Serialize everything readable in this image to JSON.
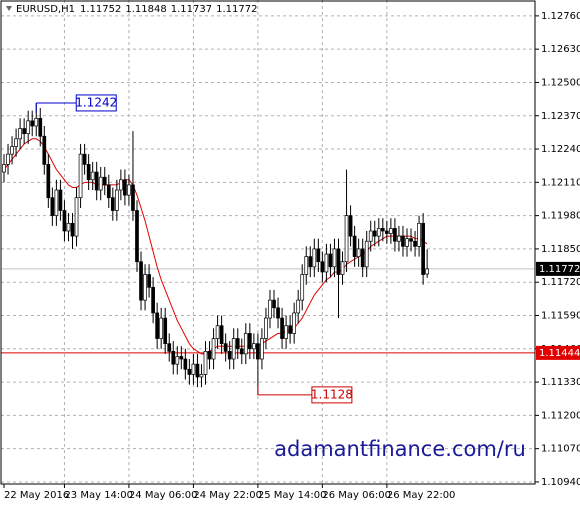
{
  "chart_data": {
    "type": "candlestick",
    "symbol": "EURUSD,H1",
    "categories": [
      "22 May 2016",
      null,
      null,
      null,
      null,
      null,
      null,
      null,
      null,
      null,
      null,
      null,
      null,
      null,
      null,
      "23 May 14:00",
      null,
      null,
      null,
      null,
      null,
      null,
      null,
      null,
      null,
      null,
      null,
      null,
      null,
      null,
      null,
      "24 May 06:00",
      null,
      null,
      null,
      null,
      null,
      null,
      null,
      null,
      null,
      null,
      null,
      null,
      null,
      null,
      null,
      "24 May 22:00",
      null,
      null,
      null,
      null,
      null,
      null,
      null,
      null,
      null,
      null,
      null,
      null,
      null,
      null,
      null,
      "25 May 14:00",
      null,
      null,
      null,
      null,
      null,
      null,
      null,
      null,
      null,
      null,
      null,
      null,
      null,
      null,
      null,
      "26 May 06:00",
      null,
      null,
      null,
      null,
      null,
      null,
      null,
      null,
      null,
      null,
      null,
      null,
      null,
      null,
      null,
      "26 May 22:00",
      null,
      null,
      null,
      null,
      null,
      null,
      null,
      null,
      null,
      null
    ],
    "open": [
      1.1215,
      1.1218,
      1.1222,
      1.1225,
      1.1228,
      1.1232,
      1.123,
      1.1235,
      1.1233,
      1.1236,
      1.1229,
      1.1218,
      1.1205,
      1.1198,
      1.1208,
      1.12,
      1.1192,
      1.1195,
      1.119,
      1.1205,
      1.1222,
      1.1218,
      1.1212,
      1.1215,
      1.1208,
      1.1213,
      1.121,
      1.1205,
      1.12,
      1.1208,
      1.1212,
      1.1206,
      1.121,
      1.12,
      1.118,
      1.1165,
      1.1175,
      1.117,
      1.116,
      1.115,
      1.1158,
      1.1148,
      1.1145,
      1.114,
      1.1143,
      1.1142,
      1.1138,
      1.1136,
      1.114,
      1.1135,
      1.1136,
      1.1145,
      1.1142,
      1.115,
      1.1155,
      1.1148,
      1.1145,
      1.1142,
      1.115,
      1.1146,
      1.1144,
      1.1152,
      1.1146,
      1.1148,
      1.1142,
      1.115,
      1.1158,
      1.1165,
      1.1162,
      1.1158,
      1.115,
      1.1155,
      1.1152,
      1.116,
      1.1165,
      1.1175,
      1.1182,
      1.1178,
      1.1185,
      1.118,
      1.1176,
      1.1183,
      1.1178,
      1.1185,
      1.1175,
      1.118,
      1.1198,
      1.119,
      1.1182,
      1.1185,
      1.1178,
      1.1188,
      1.1192,
      1.119,
      1.1193,
      1.1192,
      1.1191,
      1.1193,
      1.1188,
      1.119,
      1.1186,
      1.1189,
      1.1188,
      1.1186,
      1.1195,
      1.11752
    ],
    "high": [
      1.1222,
      1.1226,
      1.1229,
      1.1232,
      1.1236,
      1.1236,
      1.1239,
      1.1239,
      1.1242,
      1.124,
      1.1233,
      1.1222,
      1.1209,
      1.1212,
      1.1212,
      1.1204,
      1.1199,
      1.1199,
      1.1209,
      1.1226,
      1.1226,
      1.1222,
      1.1219,
      1.1219,
      1.1217,
      1.1217,
      1.1214,
      1.1209,
      1.1212,
      1.1216,
      1.1216,
      1.1214,
      1.1231,
      1.1204,
      1.1184,
      1.1179,
      1.1179,
      1.1174,
      1.1164,
      1.1162,
      1.1162,
      1.1152,
      1.1149,
      1.1147,
      1.1147,
      1.1146,
      1.1142,
      1.1144,
      1.1144,
      1.114,
      1.1149,
      1.1149,
      1.1154,
      1.1159,
      1.1159,
      1.1152,
      1.1149,
      1.1154,
      1.1154,
      1.115,
      1.1156,
      1.1156,
      1.1152,
      1.1152,
      1.1154,
      1.1162,
      1.1169,
      1.1169,
      1.1166,
      1.1162,
      1.1159,
      1.1159,
      1.1164,
      1.1169,
      1.1179,
      1.1186,
      1.1186,
      1.1189,
      1.1189,
      1.1184,
      1.1187,
      1.1187,
      1.1189,
      1.1189,
      1.1184,
      1.1216,
      1.1202,
      1.1194,
      1.1189,
      1.1189,
      1.1192,
      1.1196,
      1.1196,
      1.1197,
      1.1197,
      1.1196,
      1.1197,
      1.1197,
      1.1194,
      1.1194,
      1.1193,
      1.1193,
      1.1192,
      1.1198,
      1.1199,
      1.11848
    ],
    "low": [
      1.1211,
      1.1214,
      1.1218,
      1.1221,
      1.1224,
      1.1226,
      1.1226,
      1.1229,
      1.1229,
      1.1225,
      1.1214,
      1.1201,
      1.1194,
      1.1194,
      1.1196,
      1.1188,
      1.1188,
      1.1185,
      1.1186,
      1.1201,
      1.1214,
      1.1208,
      1.1208,
      1.1204,
      1.1204,
      1.1206,
      1.1201,
      1.1196,
      1.1196,
      1.1204,
      1.1202,
      1.1202,
      1.1196,
      1.1176,
      1.1161,
      1.1161,
      1.1166,
      1.1156,
      1.1146,
      1.1146,
      1.1144,
      1.1141,
      1.1136,
      1.1136,
      1.1138,
      1.1134,
      1.1132,
      1.1132,
      1.1131,
      1.1131,
      1.1132,
      1.1138,
      1.1138,
      1.1146,
      1.1144,
      1.1141,
      1.1138,
      1.1138,
      1.1142,
      1.114,
      1.114,
      1.1142,
      1.1142,
      1.1128,
      1.1138,
      1.1146,
      1.1154,
      1.1158,
      1.1154,
      1.1146,
      1.1146,
      1.1148,
      1.1148,
      1.1156,
      1.1161,
      1.1171,
      1.1174,
      1.1174,
      1.1176,
      1.1172,
      1.1172,
      1.1174,
      1.1174,
      1.1158,
      1.1171,
      1.1176,
      1.1186,
      1.1178,
      1.1178,
      1.1174,
      1.1174,
      1.1184,
      1.1186,
      1.1186,
      1.1188,
      1.1187,
      1.1187,
      1.1184,
      1.1184,
      1.1182,
      1.1182,
      1.1184,
      1.1182,
      1.1182,
      1.1171,
      1.11737
    ],
    "close": [
      1.1218,
      1.1222,
      1.1225,
      1.1228,
      1.1232,
      1.123,
      1.1235,
      1.1233,
      1.1236,
      1.1229,
      1.1218,
      1.1205,
      1.1198,
      1.1208,
      1.12,
      1.1192,
      1.1195,
      1.119,
      1.1205,
      1.1222,
      1.1218,
      1.1212,
      1.1215,
      1.1208,
      1.1213,
      1.121,
      1.1205,
      1.12,
      1.1208,
      1.1212,
      1.1206,
      1.121,
      1.12,
      1.118,
      1.1165,
      1.1175,
      1.117,
      1.116,
      1.115,
      1.1158,
      1.1148,
      1.1145,
      1.114,
      1.1143,
      1.1142,
      1.1138,
      1.1136,
      1.114,
      1.1135,
      1.1136,
      1.1145,
      1.1142,
      1.115,
      1.1155,
      1.1148,
      1.1145,
      1.1142,
      1.115,
      1.1146,
      1.1144,
      1.1152,
      1.1146,
      1.1148,
      1.1142,
      1.115,
      1.1158,
      1.1165,
      1.1162,
      1.1158,
      1.115,
      1.1155,
      1.1152,
      1.116,
      1.1165,
      1.1175,
      1.1182,
      1.1178,
      1.1185,
      1.118,
      1.1176,
      1.1183,
      1.1178,
      1.1185,
      1.1175,
      1.118,
      1.1198,
      1.119,
      1.1182,
      1.1185,
      1.1178,
      1.1188,
      1.1192,
      1.119,
      1.1193,
      1.1192,
      1.1191,
      1.1193,
      1.1188,
      1.119,
      1.1186,
      1.1189,
      1.1188,
      1.1186,
      1.1195,
      1.1175,
      1.11772
    ],
    "ma": {
      "color": "#e00000",
      "values": [
        1.1216,
        1.1218,
        1.122,
        1.1222,
        1.1224,
        1.1226,
        1.1227,
        1.1228,
        1.1228,
        1.1227,
        1.1225,
        1.1222,
        1.1219,
        1.1216,
        1.1214,
        1.1212,
        1.121,
        1.1209,
        1.1209,
        1.121,
        1.1211,
        1.1211,
        1.1211,
        1.121,
        1.121,
        1.121,
        1.121,
        1.121,
        1.121,
        1.1211,
        1.1212,
        1.1212,
        1.121,
        1.1206,
        1.1201,
        1.1196,
        1.119,
        1.1184,
        1.1178,
        1.1173,
        1.1169,
        1.1165,
        1.1161,
        1.1157,
        1.1154,
        1.1151,
        1.1148,
        1.1146,
        1.1145,
        1.1144,
        1.1144,
        1.1145,
        1.1146,
        1.1147,
        1.1147,
        1.1147,
        1.1147,
        1.1147,
        1.1147,
        1.1147,
        1.1147,
        1.1147,
        1.1147,
        1.1147,
        1.1148,
        1.1149,
        1.115,
        1.1151,
        1.1152,
        1.1152,
        1.1153,
        1.1153,
        1.1154,
        1.1156,
        1.1158,
        1.1161,
        1.1164,
        1.1167,
        1.1169,
        1.1171,
        1.1173,
        1.1174,
        1.1176,
        1.1176,
        1.1177,
        1.1179,
        1.118,
        1.1181,
        1.1182,
        1.1183,
        1.1184,
        1.1186,
        1.1187,
        1.1188,
        1.1189,
        1.119,
        1.119,
        1.119,
        1.119,
        1.119,
        1.119,
        1.119,
        1.1189,
        1.1189,
        1.1188,
        1.1187
      ]
    },
    "ylim": [
      1.10932,
      1.12822
    ],
    "yticks": [
      {
        "value": 1.1276,
        "label": "1.12760"
      },
      {
        "value": 1.1263,
        "label": "1.12630"
      },
      {
        "value": 1.125,
        "label": "1.12500"
      },
      {
        "value": 1.1237,
        "label": "1.12370"
      },
      {
        "value": 1.1224,
        "label": "1.12240"
      },
      {
        "value": 1.1211,
        "label": "1.12110"
      },
      {
        "value": 1.1198,
        "label": "1.11980"
      },
      {
        "value": 1.1185,
        "label": "1.11850"
      },
      {
        "value": 1.1172,
        "label": "1.11720"
      },
      {
        "value": 1.1159,
        "label": "1.11590"
      },
      {
        "value": 1.1146,
        "label": "1.11460"
      },
      {
        "value": 1.1133,
        "label": "1.11330"
      },
      {
        "value": 1.112,
        "label": "1.11200"
      },
      {
        "value": 1.1107,
        "label": "1.11070"
      },
      {
        "value": 1.1094,
        "label": "1.10940"
      }
    ],
    "grid": true,
    "hline": {
      "value": 1.11444,
      "color": "#e00000"
    },
    "annotations": [
      {
        "value": 1.1242,
        "color": "#0000cc"
      },
      {
        "value": 1.1128,
        "color": "#cc0000"
      }
    ],
    "watermark": "adamantfinance.com/ru"
  }
}
